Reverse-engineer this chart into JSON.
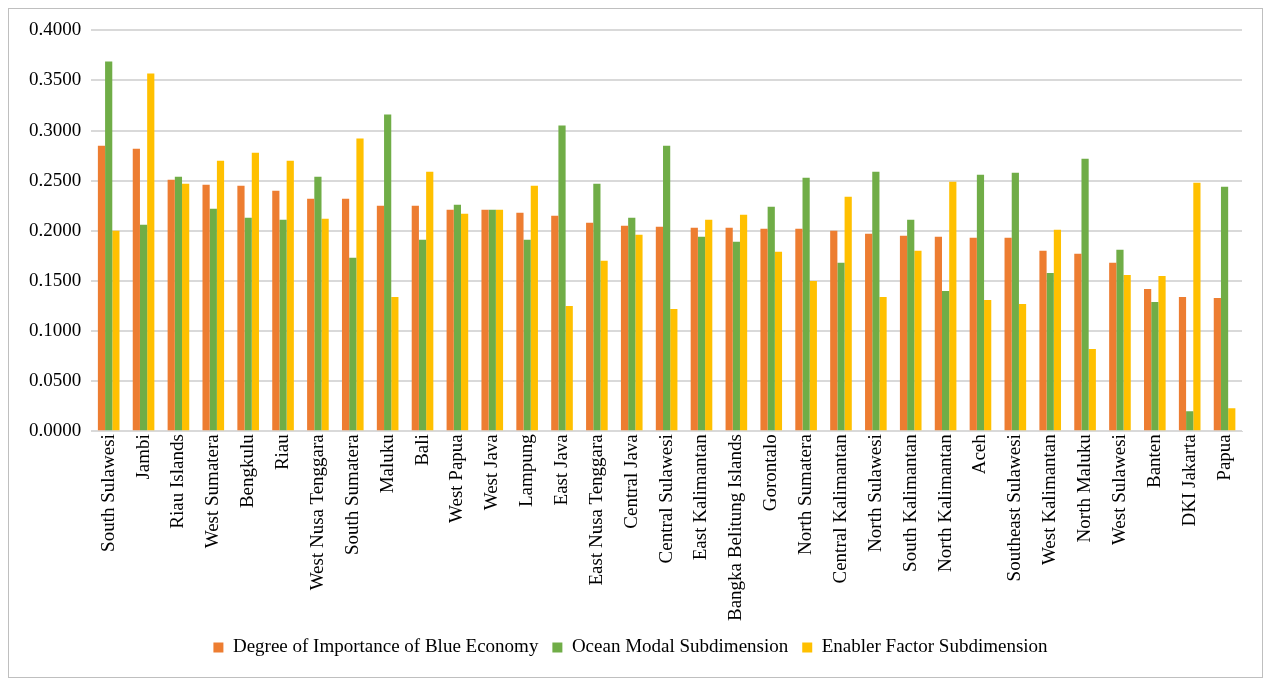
{
  "chart_data": {
    "type": "bar",
    "categories": [
      "South Sulawesi",
      "Jambi",
      "Riau Islands",
      "West Sumatera",
      "Bengkulu",
      "Riau",
      "West Nusa Tenggara",
      "South Sumatera",
      "Maluku",
      "Bali",
      "West Papua",
      "West Java",
      "Lampung",
      "East Java",
      "East Nusa Tenggara",
      "Central Java",
      "Central Sulawesi",
      "East Kalimantan",
      "Bangka Belitung Islands",
      "Gorontalo",
      "North Sumatera",
      "Central Kalimantan",
      "North Sulawesi",
      "South Kalimantan",
      "North Kalimantan",
      "Aceh",
      "Southeast Sulawesi",
      "West Kalimantan",
      "North Maluku",
      "West Sulawesi",
      "Banten",
      "DKI Jakarta",
      "Papua"
    ],
    "series": [
      {
        "name": "Degree of Importance of Blue Economy",
        "color": "#ed7d31",
        "values": [
          0.285,
          0.282,
          0.251,
          0.246,
          0.245,
          0.24,
          0.232,
          0.232,
          0.225,
          0.225,
          0.221,
          0.221,
          0.218,
          0.215,
          0.208,
          0.205,
          0.204,
          0.203,
          0.203,
          0.202,
          0.202,
          0.2,
          0.197,
          0.195,
          0.194,
          0.193,
          0.193,
          0.18,
          0.177,
          0.168,
          0.142,
          0.134,
          0.133
        ]
      },
      {
        "name": "Ocean Modal Subdimension",
        "color": "#70ad47",
        "values": [
          0.369,
          0.206,
          0.254,
          0.222,
          0.213,
          0.211,
          0.254,
          0.173,
          0.316,
          0.191,
          0.226,
          0.221,
          0.191,
          0.305,
          0.247,
          0.213,
          0.285,
          0.194,
          0.189,
          0.224,
          0.253,
          0.168,
          0.259,
          0.211,
          0.14,
          0.256,
          0.258,
          0.158,
          0.272,
          0.181,
          0.129,
          0.02,
          0.244
        ]
      },
      {
        "name": "Enabler Factor Subdimension",
        "color": "#ffc000",
        "values": [
          0.2,
          0.357,
          0.247,
          0.27,
          0.278,
          0.27,
          0.212,
          0.292,
          0.134,
          0.259,
          0.217,
          0.221,
          0.245,
          0.125,
          0.17,
          0.196,
          0.122,
          0.211,
          0.216,
          0.179,
          0.15,
          0.234,
          0.134,
          0.18,
          0.249,
          0.131,
          0.127,
          0.201,
          0.082,
          0.156,
          0.155,
          0.248,
          0.023
        ]
      }
    ],
    "ylim": [
      0,
      0.4
    ],
    "yticks": [
      {
        "value": 0,
        "label": "0.0000"
      },
      {
        "value": 0.05,
        "label": "0.0500"
      },
      {
        "value": 0.1,
        "label": "0.1000"
      },
      {
        "value": 0.15,
        "label": "0.1500"
      },
      {
        "value": 0.2,
        "label": "0.2000"
      },
      {
        "value": 0.25,
        "label": "0.2500"
      },
      {
        "value": 0.3,
        "label": "0.3000"
      },
      {
        "value": 0.35,
        "label": "0.3500"
      },
      {
        "value": 0.4,
        "label": "0.4000"
      }
    ],
    "grid": "y",
    "legend": "bottom"
  }
}
